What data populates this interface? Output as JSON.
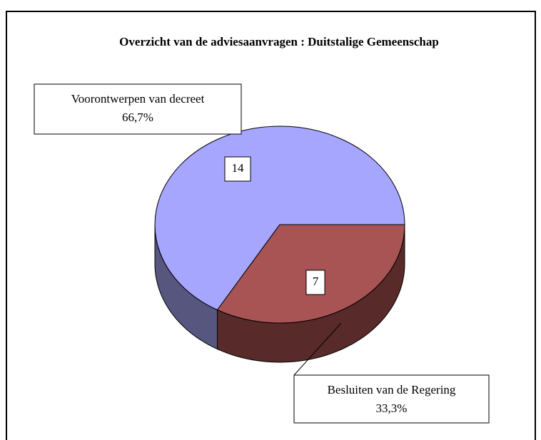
{
  "chart_data": {
    "type": "pie",
    "title": "Overzicht van de adviesaanvragen : Duitstalige Gemeenschap",
    "categories": [
      "Voorontwerpen van decreet",
      "Besluiten van de Regering"
    ],
    "values": [
      14,
      7
    ],
    "percent_labels": [
      "66,7%",
      "33,3%"
    ],
    "colors": [
      "#a6a6ff",
      "#a85454"
    ],
    "side_colors": [
      "#56567e",
      "#582a2a"
    ]
  }
}
